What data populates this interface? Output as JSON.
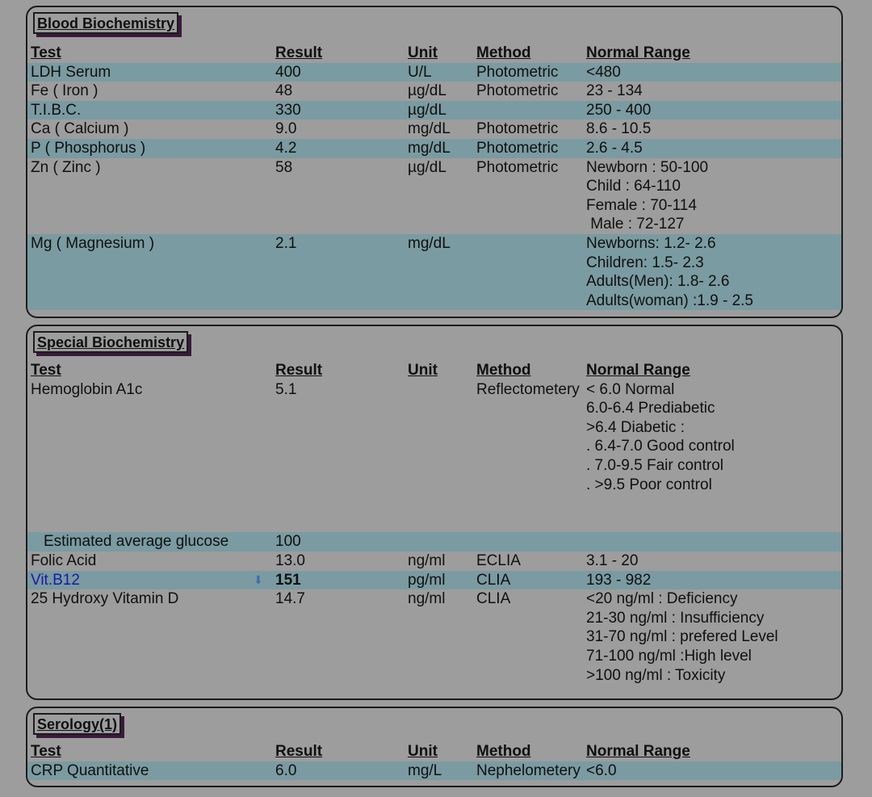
{
  "headers": {
    "test": "Test",
    "result": "Result",
    "unit": "Unit",
    "method": "Method",
    "range": "Normal Range"
  },
  "sections": [
    {
      "title": "Blood Biochemistry",
      "rows": [
        {
          "test": "LDH Serum",
          "result": "400",
          "unit": "U/L",
          "method": "Photometric",
          "range": [
            "<480"
          ]
        },
        {
          "test": "Fe ( Iron )",
          "result": "48",
          "unit": "µg/dL",
          "method": "Photometric",
          "range": [
            "23 - 134"
          ]
        },
        {
          "test": "T.I.B.C.",
          "result": "330",
          "unit": "µg/dL",
          "method": "",
          "range": [
            "250 - 400"
          ]
        },
        {
          "test": "Ca ( Calcium )",
          "result": "9.0",
          "unit": "mg/dL",
          "method": "Photometric",
          "range": [
            "8.6 - 10.5"
          ]
        },
        {
          "test": "P ( Phosphorus )",
          "result": "4.2",
          "unit": "mg/dL",
          "method": "Photometric",
          "range": [
            "2.6 - 4.5"
          ]
        },
        {
          "test": "Zn ( Zinc )",
          "result": "58",
          "unit": "µg/dL",
          "method": "Photometric",
          "range": [
            "Newborn : 50-100",
            "Child : 64-110",
            "Female : 70-114",
            " Male : 72-127"
          ]
        },
        {
          "test": "Mg ( Magnesium )",
          "result": "2.1",
          "unit": "mg/dL",
          "method": "",
          "range": [
            "Newborns: 1.2- 2.6",
            "Children: 1.5- 2.3",
            "Adults(Men): 1.8- 2.6",
            "Adults(woman) :1.9 - 2.5"
          ]
        }
      ]
    },
    {
      "title": "Special Biochemistry",
      "rows": [
        {
          "test": "Hemoglobin A1c",
          "result": "5.1",
          "unit": "",
          "method": "Reflectometery",
          "range": [
            "< 6.0 Normal",
            "6.0-6.4 Prediabetic",
            ">6.4 Diabetic :",
            ". 6.4-7.0 Good control",
            ". 7.0-9.5 Fair control",
            ". >9.5 Poor control"
          ]
        },
        {
          "test": "  Estimated average glucose",
          "result": "100",
          "unit": "",
          "method": "",
          "range": []
        },
        {
          "test": "Folic Acid",
          "result": "13.0",
          "unit": "ng/ml",
          "method": "ECLIA",
          "range": [
            "3.1 - 20"
          ]
        },
        {
          "test": "Vit.B12",
          "result": "151",
          "unit": "pg/ml",
          "method": "CLIA",
          "range": [
            "193 - 982"
          ],
          "flag": "down-arrow-icon"
        },
        {
          "test": "25 Hydroxy Vitamin D",
          "result": "14.7",
          "unit": "ng/ml",
          "method": "CLIA",
          "range": [
            "<20 ng/ml : Deficiency",
            "21-30 ng/ml : Insufficiency",
            "31-70 ng/ml : prefered Level",
            "71-100 ng/ml :High level",
            ">100 ng/ml : Toxicity"
          ]
        }
      ]
    },
    {
      "title": "Serology(1)",
      "rows": [
        {
          "test": "CRP Quantitative",
          "result": "6.0",
          "unit": "mg/L",
          "method": "Nephelometery",
          "range": [
            "<6.0"
          ]
        }
      ]
    }
  ],
  "colors": {
    "background": "#9d9d9d",
    "row_shade": "#7a9ba1",
    "abnormal_name": "#1919a8",
    "flag_arrow": "#3b6fb0",
    "title_shadow": "#3a1a3c"
  }
}
